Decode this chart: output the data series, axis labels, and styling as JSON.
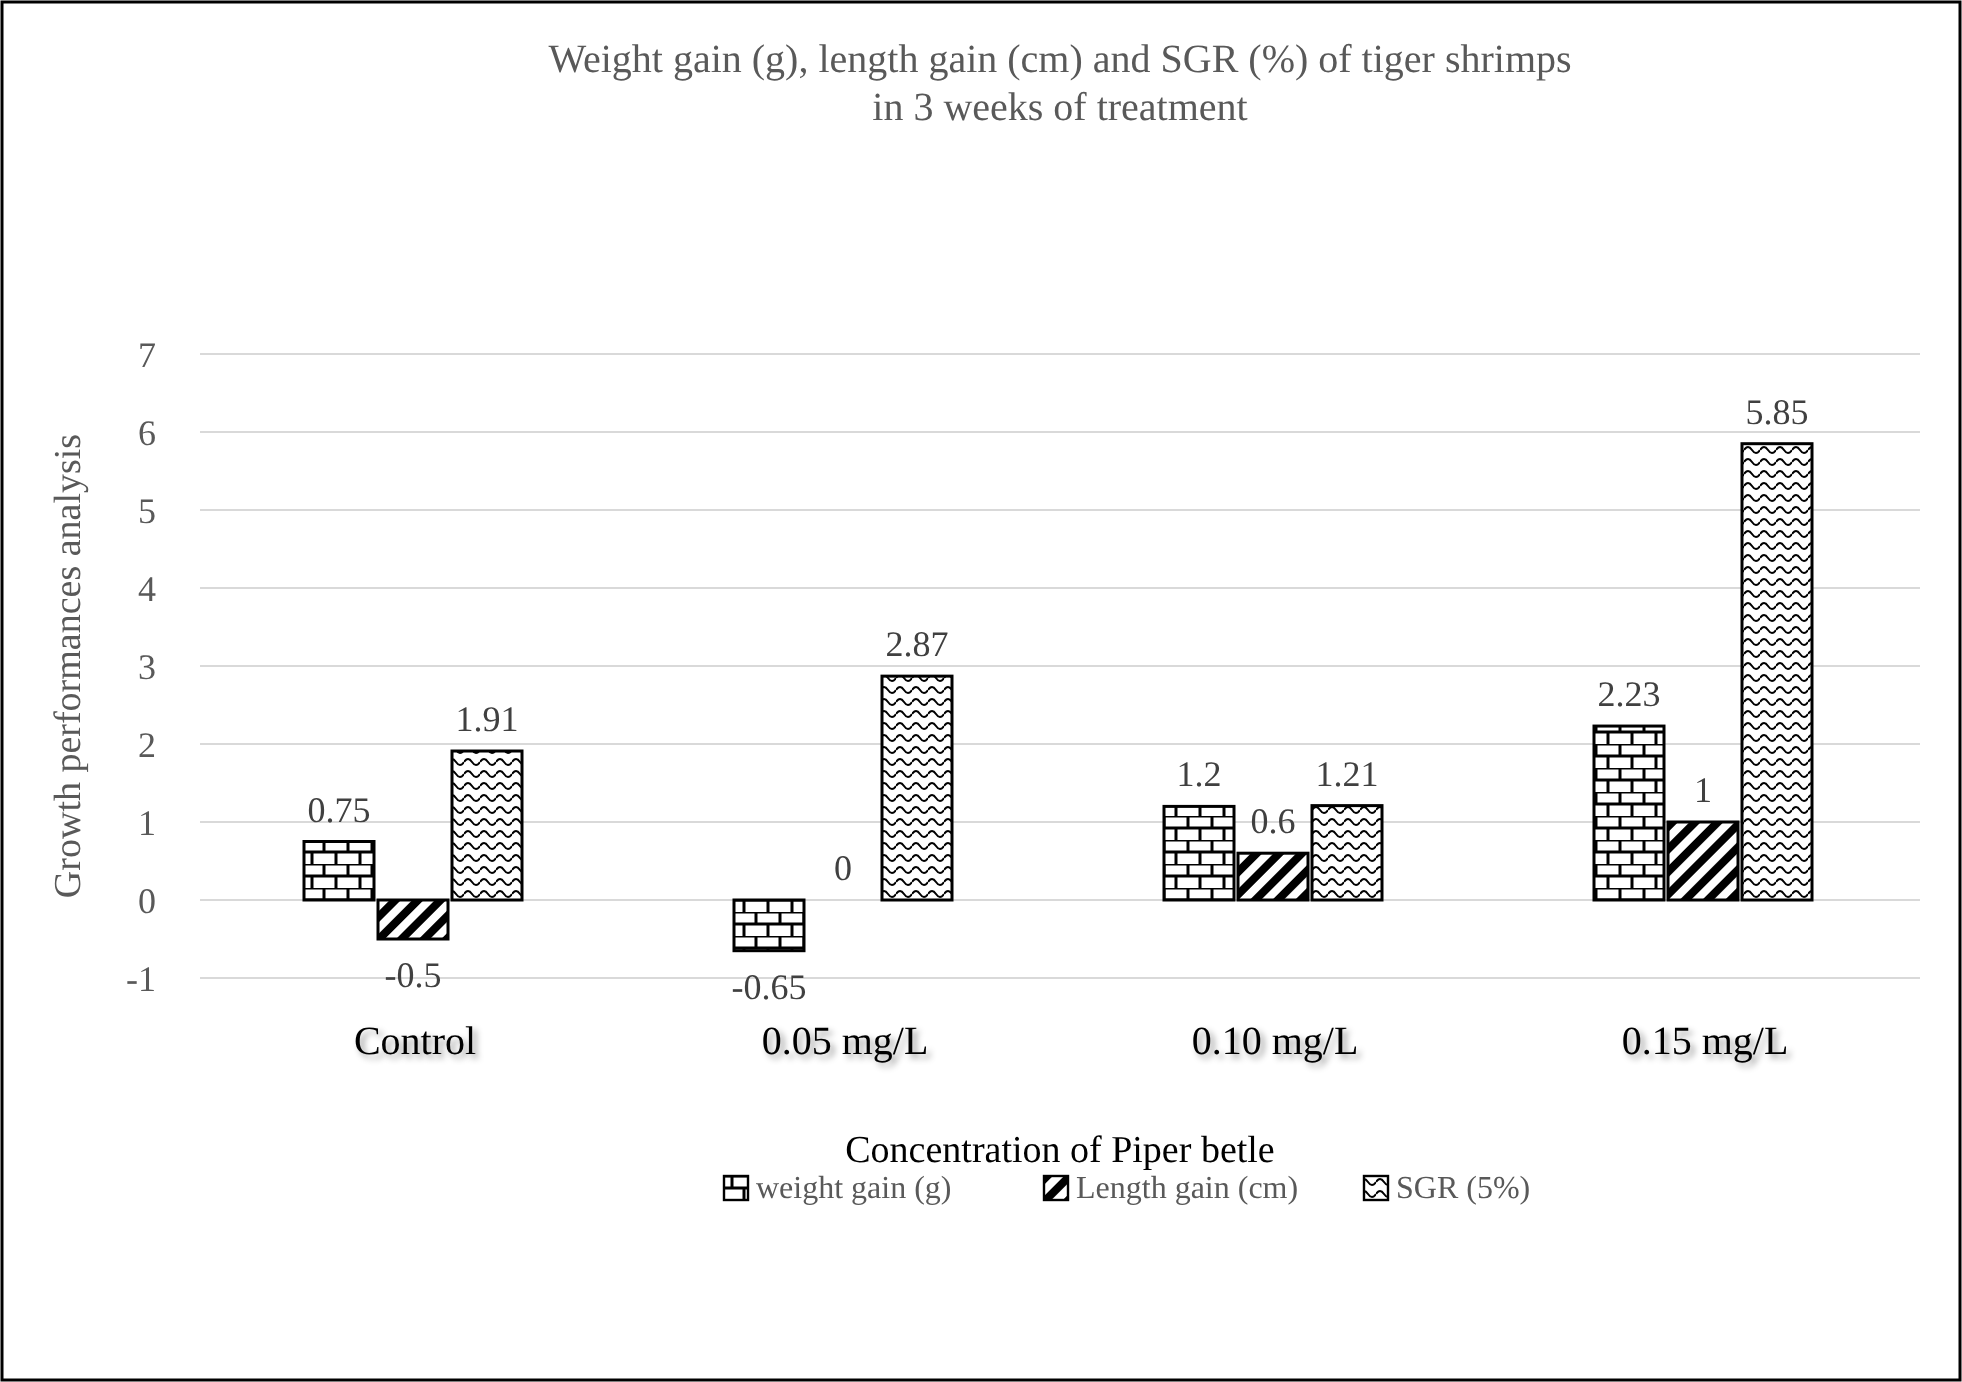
{
  "chart_data": {
    "type": "bar",
    "title": "Weight gain (g), length gain (cm) and SGR (%) of tiger shrimps\nin 3 weeks of treatment",
    "xlabel": "Concentration of Piper betle",
    "ylabel": "Growth performances analysis",
    "categories": [
      "Control",
      "0.05 mg/L",
      "0.10 mg/L",
      "0.15 mg/L"
    ],
    "series": [
      {
        "name": "weight gain (g)",
        "color": "#000000",
        "values": [
          0.75,
          -0.65,
          1.2,
          2.23
        ]
      },
      {
        "name": "Length gain (cm)",
        "color": "#000000",
        "values": [
          -0.5,
          0,
          0.6,
          1
        ]
      },
      {
        "name": "SGR (5%)",
        "color": "#000000",
        "values": [
          1.91,
          2.87,
          1.21,
          5.85
        ]
      }
    ],
    "ylim": [
      -1,
      7
    ],
    "yticks": [
      -1,
      0,
      1,
      2,
      3,
      4,
      5,
      6,
      7
    ],
    "grid": "y",
    "legend": "bottom",
    "data_labels": true
  }
}
